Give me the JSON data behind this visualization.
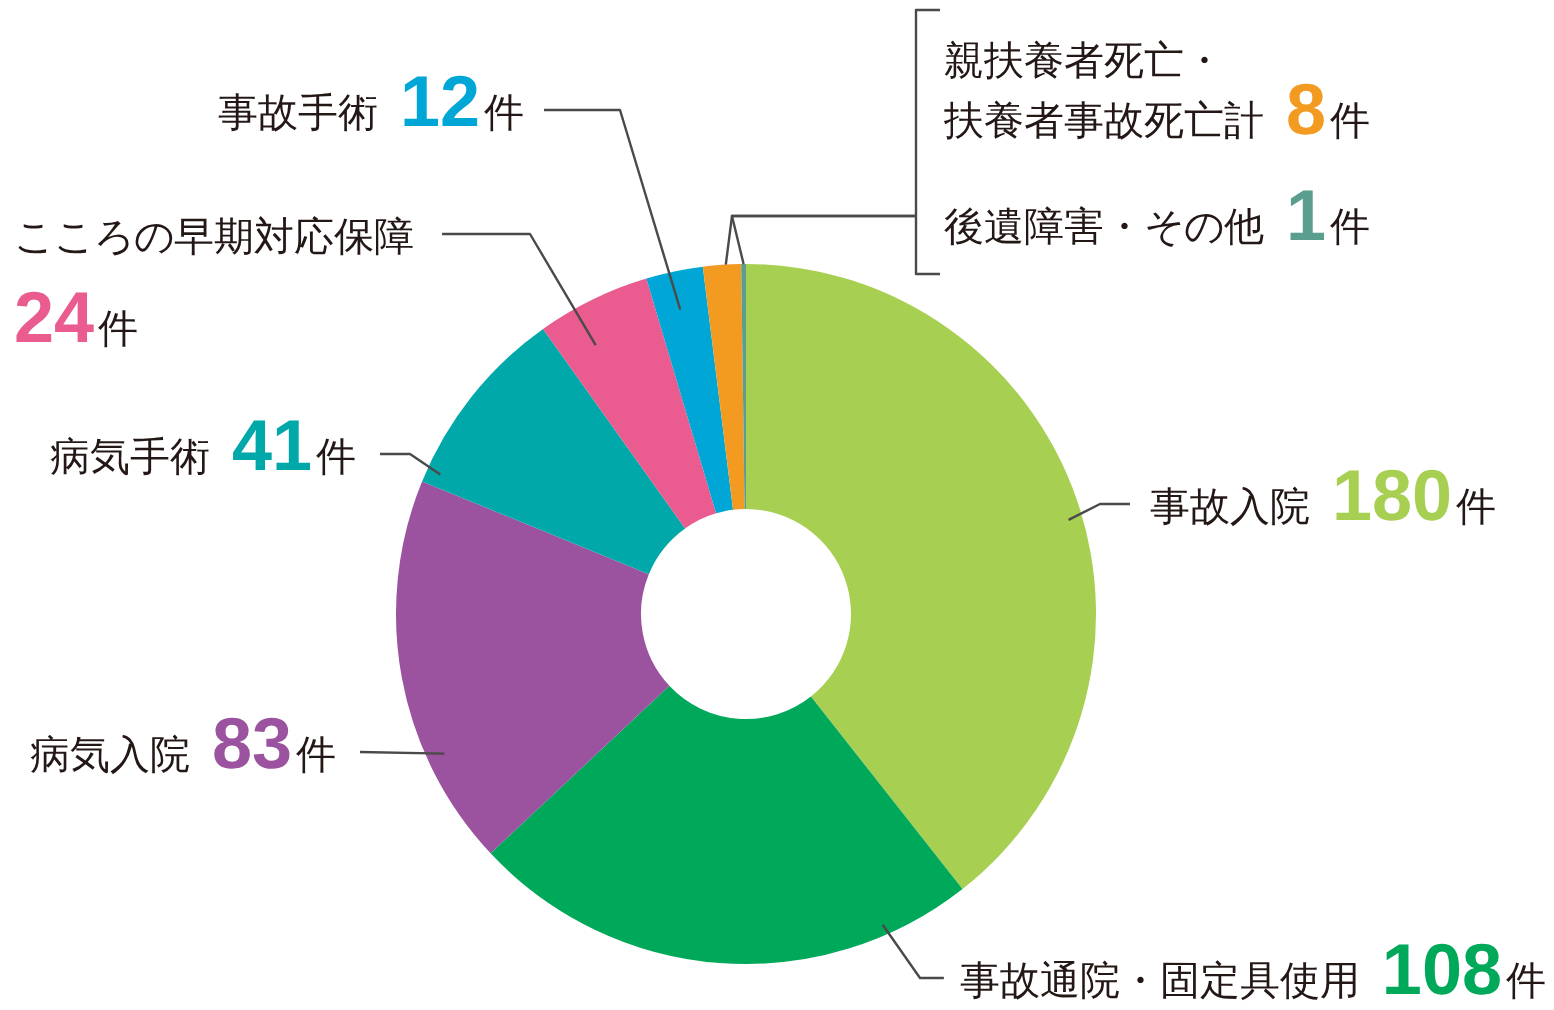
{
  "chart_data": {
    "type": "donut",
    "categories": [
      "事故入院",
      "事故通院・固定具使用",
      "病気入院",
      "病気手術",
      "こころの早期対応保障",
      "事故手術",
      "親扶養者死亡・扶養者事故死亡計",
      "後遺障害・その他"
    ],
    "values": [
      180,
      108,
      83,
      41,
      24,
      12,
      8,
      1
    ],
    "colors": [
      "#a7cf52",
      "#00a85a",
      "#9b529f",
      "#00a8a9",
      "#ea5b8f",
      "#00a6d5",
      "#f39a21",
      "#5b9d8e"
    ],
    "value_labels": [
      "180件",
      "108件",
      "83件",
      "41件",
      "24件",
      "12件",
      "8件",
      "1件"
    ]
  }
}
